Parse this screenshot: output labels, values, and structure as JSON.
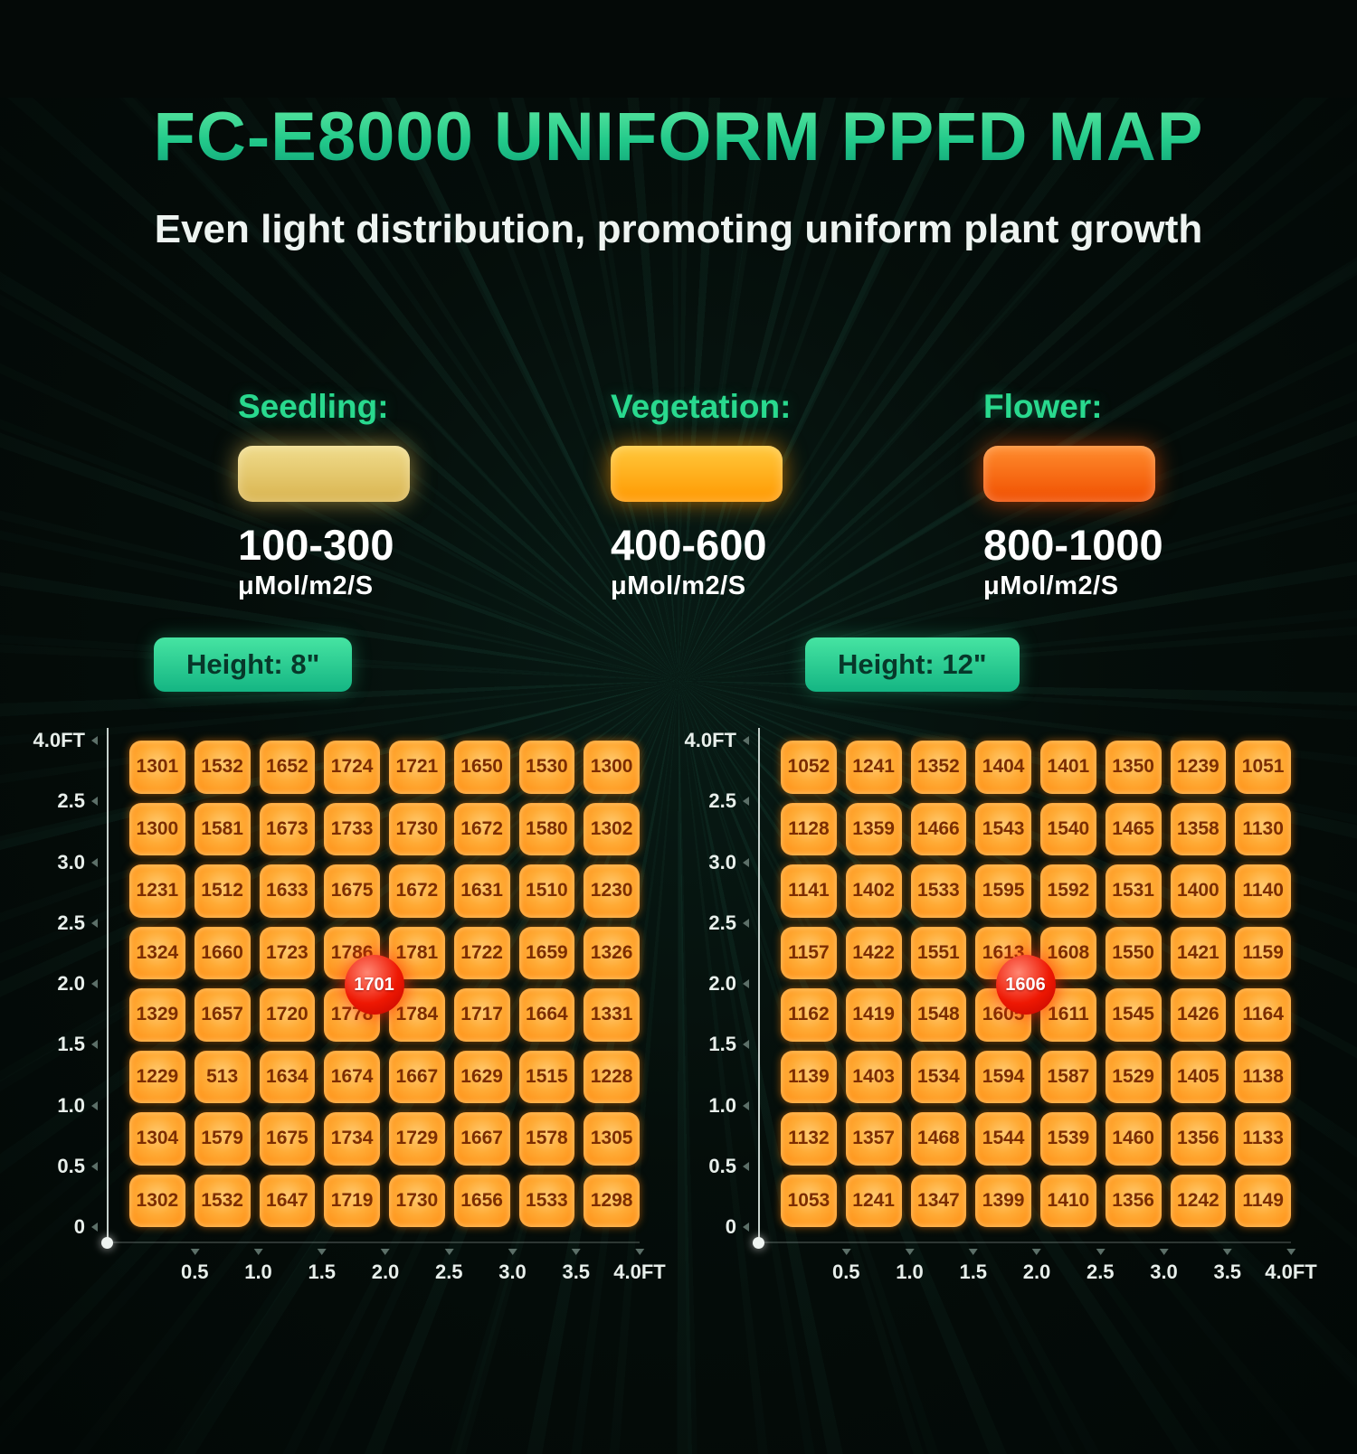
{
  "title": "FC-E8000 UNIFORM PPFD MAP",
  "subtitle": "Even light distribution, promoting uniform plant growth",
  "legend": {
    "items": [
      {
        "label": "Seedling:",
        "range": "100-300",
        "unit": "μMol/m2/S",
        "color": "#d9b44f",
        "color_light": "#f0dc8c"
      },
      {
        "label": "Vegetation:",
        "range": "400-600",
        "unit": "μMol/m2/S",
        "color": "#ff9800",
        "color_light": "#ffc93e"
      },
      {
        "label": "Flower:",
        "range": "800-1000",
        "unit": "μMol/m2/S",
        "color": "#f04e00",
        "color_light": "#ff8d2e"
      }
    ]
  },
  "chart_data": [
    {
      "type": "heatmap",
      "title": "Height: 8\"",
      "unit": "μMol/m2/S",
      "center_value": 1701,
      "x_labels": [
        "0.5",
        "1.0",
        "1.5",
        "2.0",
        "2.5",
        "3.0",
        "3.5",
        "4.0FT"
      ],
      "y_labels": [
        "4.0FT",
        "2.5",
        "3.0",
        "2.5",
        "2.0",
        "1.5",
        "1.0",
        "0.5",
        "0"
      ],
      "values": [
        [
          1301,
          1532,
          1652,
          1724,
          1721,
          1650,
          1530,
          1300
        ],
        [
          1300,
          1581,
          1673,
          1733,
          1730,
          1672,
          1580,
          1302
        ],
        [
          1231,
          1512,
          1633,
          1675,
          1672,
          1631,
          1510,
          1230
        ],
        [
          1324,
          1660,
          1723,
          1786,
          1781,
          1722,
          1659,
          1326
        ],
        [
          1329,
          1657,
          1720,
          1778,
          1784,
          1717,
          1664,
          1331
        ],
        [
          1229,
          513,
          1634,
          1674,
          1667,
          1629,
          1515,
          1228
        ],
        [
          1304,
          1579,
          1675,
          1734,
          1729,
          1667,
          1578,
          1305
        ],
        [
          1302,
          1532,
          1647,
          1719,
          1730,
          1656,
          1533,
          1298
        ]
      ]
    },
    {
      "type": "heatmap",
      "title": "Height: 12\"",
      "unit": "μMol/m2/S",
      "center_value": 1606,
      "x_labels": [
        "0.5",
        "1.0",
        "1.5",
        "2.0",
        "2.5",
        "3.0",
        "3.5",
        "4.0FT"
      ],
      "y_labels": [
        "4.0FT",
        "2.5",
        "3.0",
        "2.5",
        "2.0",
        "1.5",
        "1.0",
        "0.5",
        "0"
      ],
      "values": [
        [
          1052,
          1241,
          1352,
          1404,
          1401,
          1350,
          1239,
          1051
        ],
        [
          1128,
          1359,
          1466,
          1543,
          1540,
          1465,
          1358,
          1130
        ],
        [
          1141,
          1402,
          1533,
          1595,
          1592,
          1531,
          1400,
          1140
        ],
        [
          1157,
          1422,
          1551,
          1613,
          1608,
          1550,
          1421,
          1159
        ],
        [
          1162,
          1419,
          1548,
          1605,
          1611,
          1545,
          1426,
          1164
        ],
        [
          1139,
          1403,
          1534,
          1594,
          1587,
          1529,
          1405,
          1138
        ],
        [
          1132,
          1357,
          1468,
          1544,
          1539,
          1460,
          1356,
          1133
        ],
        [
          1053,
          1241,
          1347,
          1399,
          1410,
          1356,
          1242,
          1149
        ]
      ]
    }
  ]
}
